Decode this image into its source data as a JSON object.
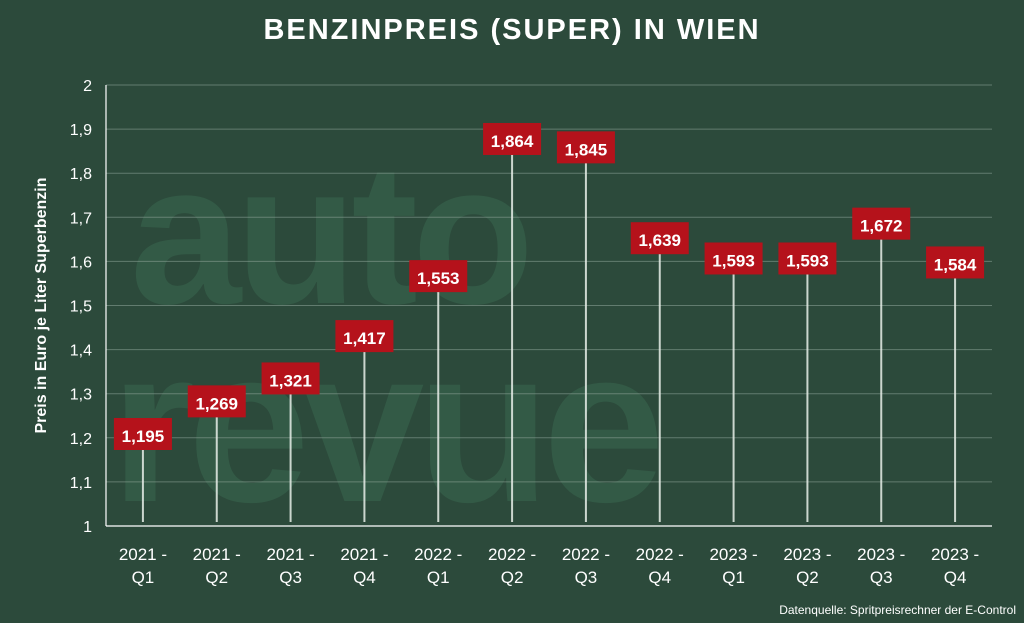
{
  "title": "BENZINPREIS (SUPER) IN WIEN",
  "source": "Datenquelle: Spritpreisrechner der E-Control",
  "watermark": [
    "auto",
    "revue"
  ],
  "colors": {
    "background": "#2c4a3b",
    "label_bg": "#b5121b",
    "grid": "#8fa69a",
    "text": "#ffffff"
  },
  "chart_data": {
    "type": "bar",
    "title": "BENZINPREIS (SUPER) IN WIEN",
    "ylabel": "Preis in Euro je Liter Superbenzin",
    "xlabel": "",
    "ylim": [
      1,
      2
    ],
    "yticks": [
      "1",
      "1,1",
      "1,2",
      "1,3",
      "1,4",
      "1,5",
      "1,6",
      "1,7",
      "1,8",
      "1,9",
      "2"
    ],
    "grid": true,
    "categories": [
      [
        "2021 -",
        "Q1"
      ],
      [
        "2021 -",
        "Q2"
      ],
      [
        "2021 -",
        "Q3"
      ],
      [
        "2021 -",
        "Q4"
      ],
      [
        "2022 -",
        "Q1"
      ],
      [
        "2022 -",
        "Q2"
      ],
      [
        "2022 -",
        "Q3"
      ],
      [
        "2022 -",
        "Q4"
      ],
      [
        "2023 -",
        "Q1"
      ],
      [
        "2023 -",
        "Q2"
      ],
      [
        "2023 -",
        "Q3"
      ],
      [
        "2023 -",
        "Q4"
      ]
    ],
    "values": [
      1.195,
      1.269,
      1.321,
      1.417,
      1.553,
      1.864,
      1.845,
      1.639,
      1.593,
      1.593,
      1.672,
      1.584
    ],
    "value_labels": [
      "1,195",
      "1,269",
      "1,321",
      "1,417",
      "1,553",
      "1,864",
      "1,845",
      "1,639",
      "1,593",
      "1,593",
      "1,672",
      "1,584"
    ]
  }
}
